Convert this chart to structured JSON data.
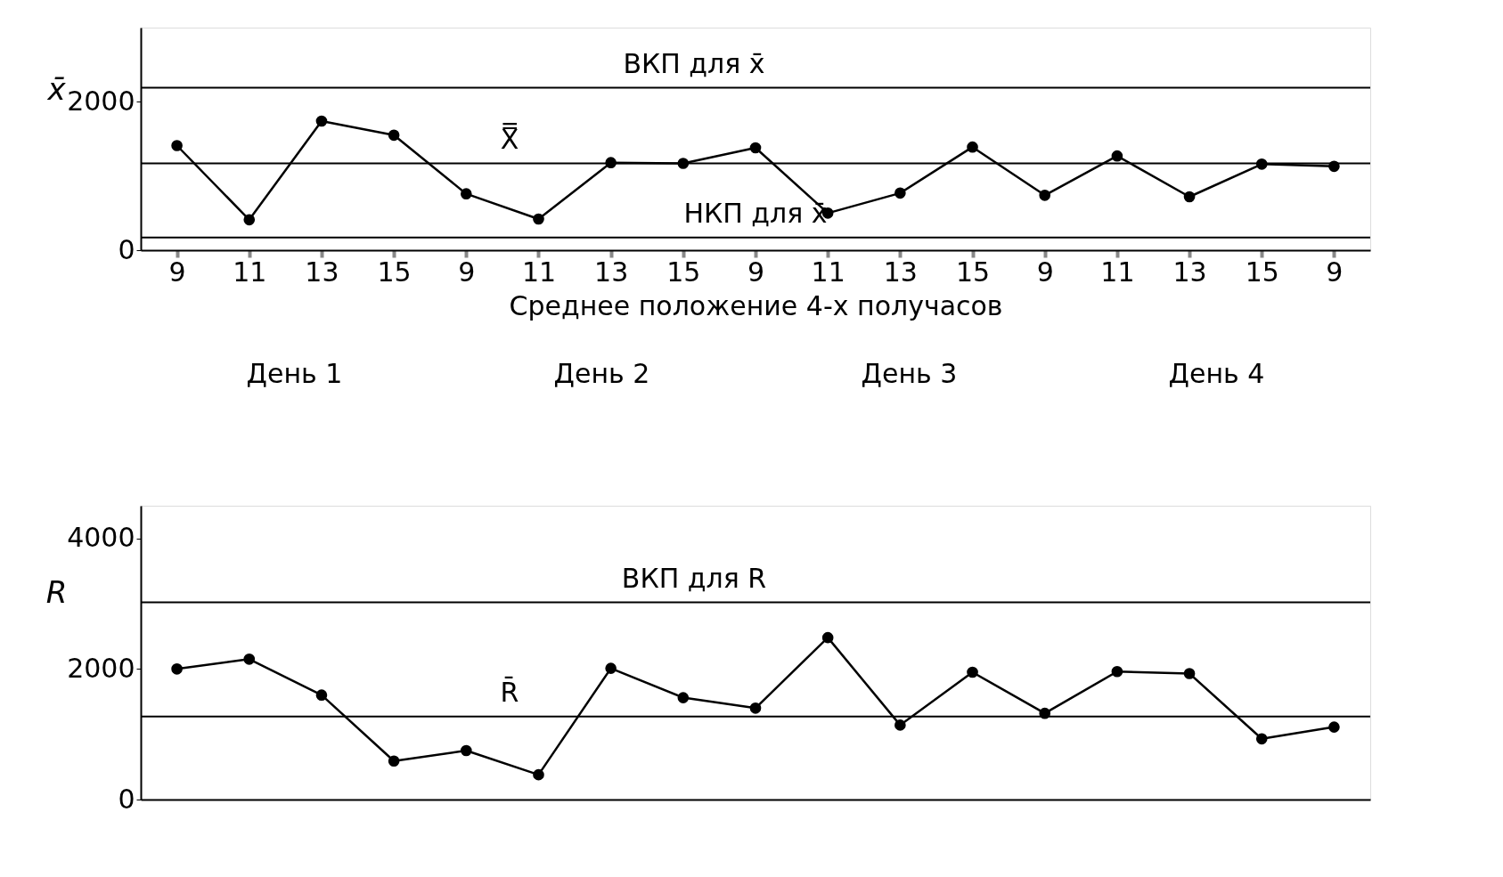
{
  "chart_data": [
    {
      "type": "line",
      "categories": [
        "9",
        "11",
        "13",
        "15",
        "9",
        "11",
        "13",
        "15",
        "9",
        "11",
        "13",
        "15",
        "9",
        "11",
        "13",
        "15",
        "9"
      ],
      "ylabel": "x̄",
      "xlabel": "Среднее положение 4-х получасов",
      "series": [
        {
          "color": "#000000",
          "values": [
            1410,
            410,
            1740,
            1550,
            760,
            420,
            1180,
            1170,
            1380,
            500,
            770,
            1390,
            740,
            1270,
            720,
            1160,
            1130
          ]
        }
      ],
      "ylim": [
        0,
        3000
      ],
      "yticks": [
        0,
        2000
      ],
      "grid": false,
      "marker": "circle",
      "line_style": "solid",
      "ref_lines": [
        {
          "axis": "y",
          "value": 2190,
          "label": "ВКП для x̄",
          "color": "#000000"
        },
        {
          "axis": "y",
          "value": 1170,
          "label": "X̿",
          "color": "#000000"
        },
        {
          "axis": "y",
          "value": 170,
          "label": "НКП для x̄",
          "color": "#000000"
        }
      ],
      "annotations": [
        "День 1",
        "День 2",
        "День 3",
        "День 4"
      ]
    },
    {
      "type": "line",
      "categories": [
        null,
        null,
        null,
        null,
        null,
        null,
        null,
        null,
        null,
        null,
        null,
        null,
        null,
        null,
        null,
        null,
        null
      ],
      "ylabel": "R",
      "series": [
        {
          "color": "#000000",
          "values": [
            2000,
            2150,
            1600,
            590,
            750,
            380,
            2010,
            1560,
            1400,
            2480,
            1140,
            1950,
            1320,
            1960,
            1930,
            930,
            1110
          ]
        }
      ],
      "ylim": [
        0,
        4500
      ],
      "yticks": [
        0,
        2000,
        4000
      ],
      "grid": false,
      "marker": "circle",
      "line_style": "solid",
      "tick_labels": "y",
      "ref_lines": [
        {
          "axis": "y",
          "value": 3020,
          "label": "ВКП для R",
          "color": "#000000"
        },
        {
          "axis": "y",
          "value": 1270,
          "label": "R̄",
          "color": "#000000"
        }
      ]
    }
  ]
}
